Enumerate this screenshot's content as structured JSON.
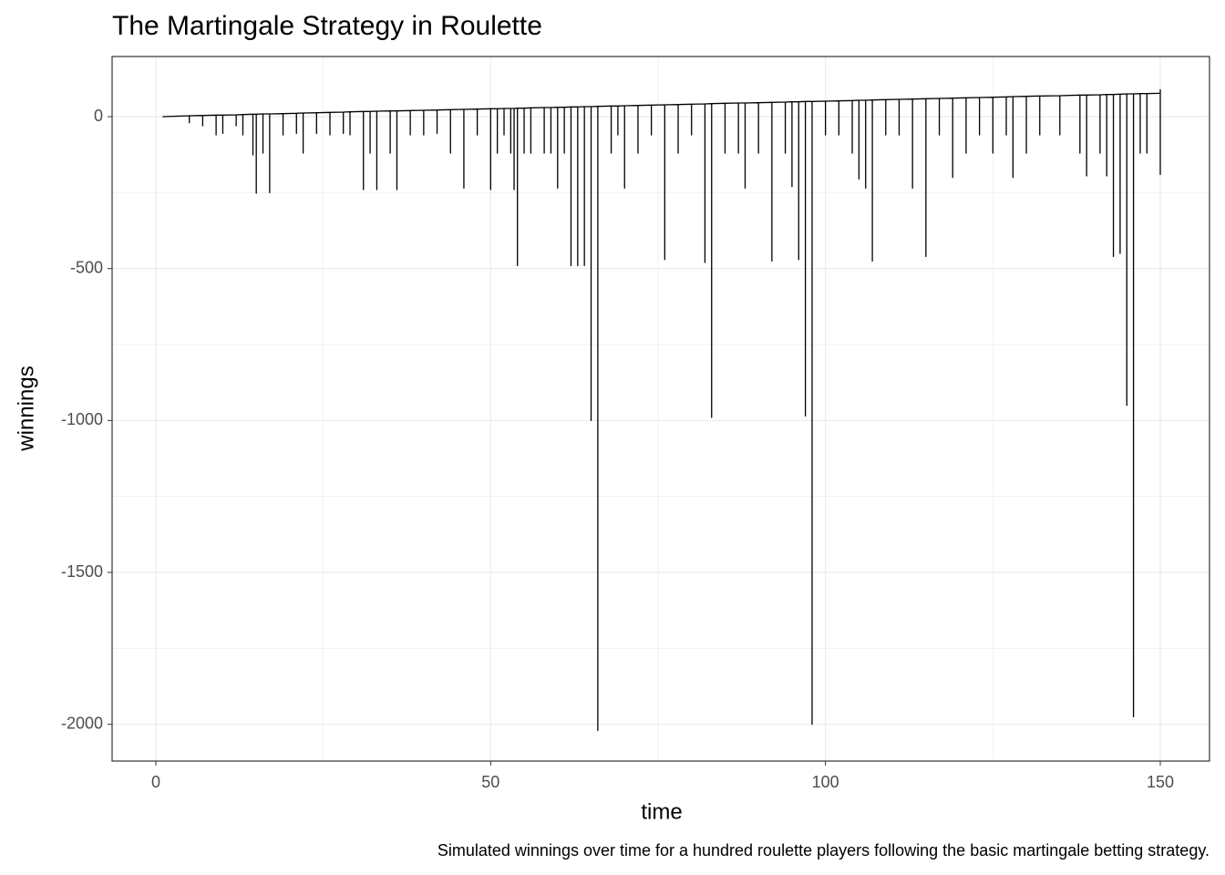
{
  "chart_data": {
    "type": "line",
    "title": "The Martingale Strategy in Roulette",
    "xlabel": "time",
    "ylabel": "winnings",
    "caption": "Simulated winnings over time for a hundred roulette players following the basic martingale betting strategy.",
    "color": "#000000",
    "grid": true,
    "xlim": [
      -6.53,
      157.35
    ],
    "ylim": [
      -2121,
      198
    ],
    "xticks": [
      0,
      50,
      100,
      150
    ],
    "yticks": [
      -2000,
      -1500,
      -1000,
      -500,
      0
    ],
    "x_minor_ticks": [
      25,
      75,
      125
    ],
    "y_minor_ticks": [
      -1750,
      -1250,
      -750,
      -250
    ],
    "x": [
      1,
      5,
      5,
      5,
      7,
      7,
      7,
      9,
      9,
      9,
      10,
      10,
      10,
      12,
      12,
      12,
      13,
      13,
      13,
      14.5,
      14.5,
      14.5,
      15,
      15,
      15,
      16,
      16,
      16,
      17,
      17,
      17,
      19,
      19,
      19,
      21,
      21,
      21,
      22,
      22,
      22,
      24,
      24,
      24,
      26,
      26,
      26,
      28,
      28,
      28,
      29,
      29,
      29,
      31,
      31,
      31,
      32,
      32,
      32,
      33,
      33,
      33,
      35,
      35,
      35,
      36,
      36,
      36,
      38,
      38,
      38,
      40,
      40,
      40,
      42,
      42,
      42,
      44,
      44,
      44,
      46,
      46,
      46,
      48,
      48,
      48,
      50,
      50,
      50,
      51,
      51,
      51,
      52,
      52,
      52,
      53,
      53,
      53,
      53.5,
      53.5,
      53.5,
      54,
      54,
      54,
      55,
      55,
      55,
      56,
      56,
      56,
      58,
      58,
      58,
      59,
      59,
      59,
      60,
      60,
      60,
      61,
      61,
      61,
      62,
      62,
      62,
      63,
      63,
      63,
      64,
      64,
      64,
      65,
      65,
      65,
      66,
      66,
      66,
      68,
      68,
      68,
      69,
      69,
      69,
      70,
      70,
      70,
      72,
      72,
      72,
      74,
      74,
      74,
      76,
      76,
      76,
      78,
      78,
      78,
      80,
      80,
      80,
      82,
      82,
      82,
      83,
      83,
      83,
      85,
      85,
      85,
      87,
      87,
      87,
      88,
      88,
      88,
      90,
      90,
      90,
      92,
      92,
      92,
      94,
      94,
      94,
      95,
      95,
      95,
      96,
      96,
      96,
      97,
      97,
      97,
      98,
      98,
      98,
      100,
      100,
      100,
      102,
      102,
      102,
      104,
      104,
      104,
      105,
      105,
      105,
      106,
      106,
      106,
      107,
      107,
      107,
      109,
      109,
      109,
      111,
      111,
      111,
      113,
      113,
      113,
      115,
      115,
      115,
      117,
      117,
      117,
      119,
      119,
      119,
      121,
      121,
      121,
      123,
      123,
      123,
      125,
      125,
      125,
      127,
      127,
      127,
      128,
      128,
      128,
      130,
      130,
      130,
      132,
      132,
      132,
      135,
      135,
      135,
      138,
      138,
      138,
      139,
      139,
      139,
      141,
      141,
      141,
      142,
      142,
      142,
      143,
      143,
      143,
      144,
      144,
      144,
      145,
      145,
      145,
      146,
      146,
      146,
      147,
      147,
      147,
      148,
      148,
      148,
      150,
      150,
      150,
      150
    ],
    "values": [
      0,
      3,
      -20,
      3,
      4,
      -30,
      4,
      5,
      -60,
      5,
      5,
      -55,
      5,
      6,
      -30,
      6,
      7,
      -60,
      7,
      8,
      -126,
      8,
      8,
      -252,
      8,
      9,
      -120,
      9,
      9,
      -250,
      9,
      10,
      -60,
      10,
      11,
      -55,
      11,
      12,
      -120,
      12,
      13,
      -55,
      13,
      14,
      -60,
      14,
      15,
      -55,
      15,
      16,
      -60,
      16,
      17,
      -240,
      17,
      17,
      -120,
      17,
      18,
      -240,
      18,
      19,
      -120,
      19,
      19,
      -240,
      19,
      20,
      -60,
      20,
      21,
      -60,
      21,
      22,
      -55,
      22,
      23,
      -120,
      23,
      24,
      -235,
      24,
      25,
      -60,
      25,
      26,
      -240,
      26,
      26,
      -120,
      26,
      27,
      -60,
      27,
      27,
      -120,
      27,
      27,
      -240,
      27,
      28,
      -490,
      28,
      28,
      -120,
      28,
      29,
      -120,
      29,
      30,
      -120,
      30,
      30,
      -120,
      30,
      31,
      -235,
      31,
      31,
      -120,
      31,
      32,
      -490,
      32,
      32,
      -490,
      32,
      33,
      -490,
      33,
      33,
      -1000,
      33,
      34,
      -2020,
      34,
      35,
      -120,
      35,
      35,
      -60,
      35,
      36,
      -235,
      36,
      37,
      -120,
      37,
      38,
      -60,
      38,
      39,
      -470,
      39,
      40,
      -120,
      40,
      41,
      -60,
      41,
      42,
      -480,
      42,
      43,
      -990,
      43,
      44,
      -120,
      44,
      45,
      -120,
      45,
      45,
      -235,
      45,
      46,
      -120,
      46,
      47,
      -475,
      47,
      48,
      -120,
      48,
      49,
      -230,
      49,
      49,
      -470,
      49,
      50,
      -985,
      50,
      50,
      -2000,
      50,
      51,
      -60,
      51,
      52,
      -60,
      52,
      53,
      -120,
      53,
      54,
      -205,
      54,
      54,
      -235,
      54,
      55,
      -475,
      55,
      56,
      -60,
      56,
      57,
      -60,
      57,
      58,
      -235,
      58,
      59,
      -460,
      59,
      60,
      -60,
      60,
      61,
      -200,
      61,
      62,
      -120,
      62,
      63,
      -60,
      63,
      64,
      -120,
      64,
      65,
      -60,
      65,
      66,
      -200,
      66,
      67,
      -120,
      67,
      68,
      -60,
      68,
      69,
      -60,
      69,
      71,
      -120,
      71,
      71,
      -195,
      71,
      72,
      -120,
      72,
      73,
      -195,
      73,
      73,
      -460,
      73,
      74,
      -450,
      74,
      75,
      -950,
      75,
      75,
      -1975,
      75,
      76,
      -120,
      76,
      76,
      -120,
      76,
      77,
      -190,
      77,
      90
    ]
  }
}
